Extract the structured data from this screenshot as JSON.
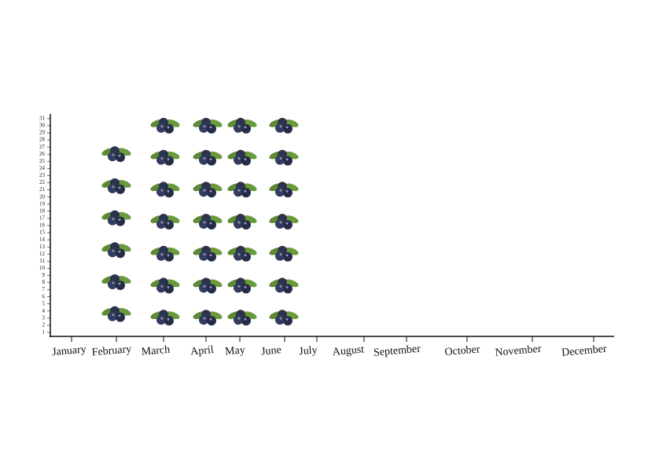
{
  "chart_data": {
    "type": "pictogram",
    "categories": [
      "January",
      "February",
      "March",
      "April",
      "May",
      "June",
      "July",
      "August",
      "September",
      "October",
      "November",
      "December"
    ],
    "values": [
      0,
      27,
      31,
      31,
      31,
      31,
      0,
      0,
      0,
      0,
      0,
      0
    ],
    "ylim": [
      0.45,
      31.65
    ],
    "yticks": [
      1,
      2,
      3,
      4,
      5,
      6,
      7,
      8,
      9,
      10,
      11,
      12,
      13,
      14,
      15,
      16,
      17,
      18,
      19,
      20,
      21,
      22,
      23,
      24,
      25,
      26,
      27,
      28,
      29,
      30,
      31
    ]
  }
}
